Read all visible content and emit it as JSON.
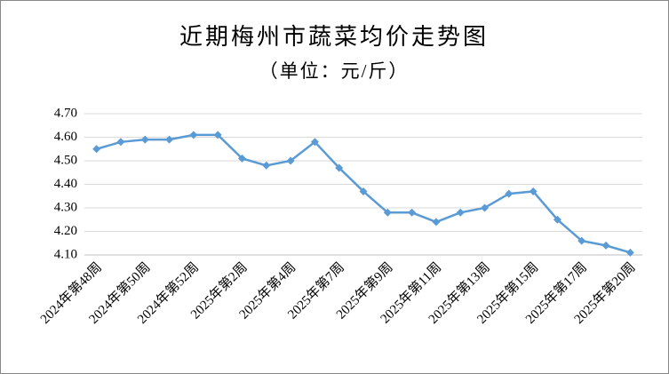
{
  "chart_data": {
    "type": "line",
    "title": "近期梅州市蔬菜均价走势图",
    "subtitle": "（单位：元/斤）",
    "categories": [
      "2024年第48周",
      null,
      "2024年第50周",
      null,
      "2024年第52周",
      null,
      "2025年第2周",
      null,
      "2025年第4周",
      null,
      "2025年第7周",
      null,
      "2025年第9周",
      null,
      "2025年第11周",
      null,
      "2025年第13周",
      null,
      "2025年第15周",
      null,
      "2025年第17周",
      null,
      "2025年第20周"
    ],
    "series": [
      {
        "color": "#5b9bd5",
        "values": [
          4.55,
          4.58,
          4.59,
          4.59,
          4.61,
          4.61,
          4.51,
          4.48,
          4.5,
          4.58,
          4.47,
          4.37,
          4.28,
          4.28,
          4.24,
          4.28,
          4.3,
          4.36,
          4.37,
          4.25,
          4.16,
          4.14,
          4.11
        ]
      }
    ],
    "ylim": [
      4.1,
      4.7
    ],
    "yticks": [
      {
        "value": 4.1,
        "label": "4.10"
      },
      {
        "value": 4.2,
        "label": "4.20"
      },
      {
        "value": 4.3,
        "label": "4.30"
      },
      {
        "value": 4.4,
        "label": "4.40"
      },
      {
        "value": 4.5,
        "label": "4.50"
      },
      {
        "value": 4.6,
        "label": "4.60"
      },
      {
        "value": 4.7,
        "label": "4.70"
      }
    ],
    "grid": true
  }
}
